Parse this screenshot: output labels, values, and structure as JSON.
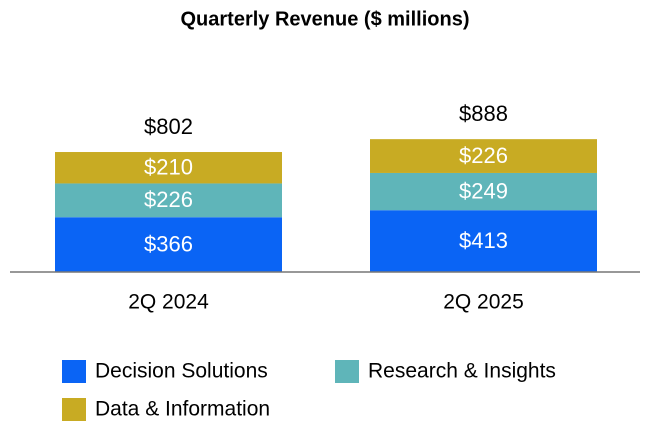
{
  "chart_data": {
    "type": "stacked_bar",
    "title": "Quarterly Revenue ($ millions)",
    "categories": [
      "2Q 2024",
      "2Q 2025"
    ],
    "series": [
      {
        "name": "Decision Solutions",
        "color": "#0a64f5",
        "values": [
          366,
          413
        ],
        "value_labels": [
          "$366",
          "$413"
        ]
      },
      {
        "name": "Research & Insights",
        "color": "#5fb5b9",
        "values": [
          226,
          249
        ],
        "value_labels": [
          "$226",
          "$249"
        ]
      },
      {
        "name": "Data & Information",
        "color": "#c8ab23",
        "values": [
          210,
          226
        ],
        "value_labels": [
          "$210",
          "$226"
        ]
      }
    ],
    "totals": [
      802,
      888
    ],
    "total_labels": [
      "$802",
      "$888"
    ]
  }
}
